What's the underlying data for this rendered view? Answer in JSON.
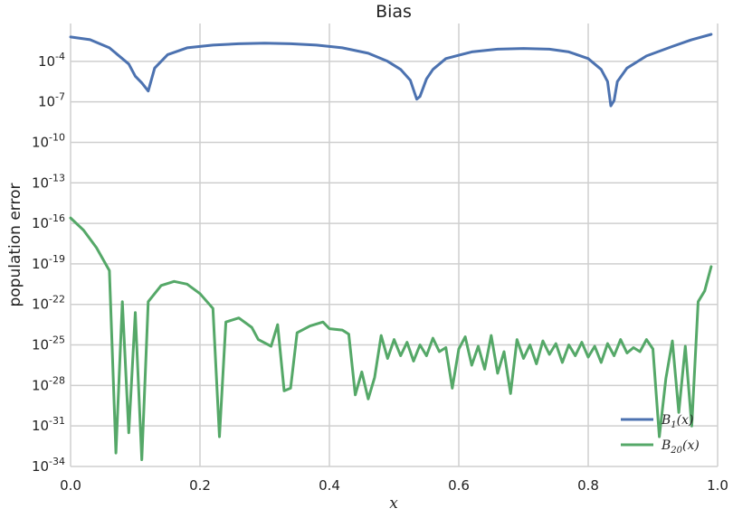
{
  "chart_data": {
    "type": "line",
    "title": "Bias",
    "xlabel": "x",
    "ylabel": "population error",
    "xscale": "linear",
    "yscale": "log",
    "xlim": [
      0.0,
      1.0
    ],
    "ylim_exponent": [
      -34,
      -1.2
    ],
    "grid": true,
    "legend_position": "lower-right",
    "x_ticks": [
      0.0,
      0.2,
      0.4,
      0.6,
      0.8,
      1.0
    ],
    "x_tick_labels": [
      "0.0",
      "0.2",
      "0.4",
      "0.6",
      "0.8",
      "1.0"
    ],
    "y_ticks_exponent": [
      -34,
      -31,
      -28,
      -25,
      -22,
      -19,
      -16,
      -13,
      -10,
      -7,
      -4
    ],
    "y_tick_base": "10",
    "y_tick_exponents": [
      "-34",
      "-31",
      "-28",
      "-25",
      "-22",
      "-19",
      "-16",
      "-13",
      "-10",
      "-7",
      "-4"
    ],
    "series": [
      {
        "name": "B_1(x)",
        "legend_main": "B",
        "legend_sub": "1",
        "legend_tail": "(x)",
        "color": "#4c72b0",
        "points_log10": [
          [
            0.0,
            -2.2
          ],
          [
            0.03,
            -2.4
          ],
          [
            0.06,
            -3.0
          ],
          [
            0.09,
            -4.2
          ],
          [
            0.1,
            -5.1
          ],
          [
            0.11,
            -5.6
          ],
          [
            0.12,
            -6.2
          ],
          [
            0.13,
            -4.5
          ],
          [
            0.15,
            -3.5
          ],
          [
            0.18,
            -3.0
          ],
          [
            0.22,
            -2.8
          ],
          [
            0.26,
            -2.7
          ],
          [
            0.3,
            -2.65
          ],
          [
            0.34,
            -2.7
          ],
          [
            0.38,
            -2.8
          ],
          [
            0.42,
            -3.0
          ],
          [
            0.46,
            -3.4
          ],
          [
            0.49,
            -4.0
          ],
          [
            0.51,
            -4.6
          ],
          [
            0.525,
            -5.4
          ],
          [
            0.535,
            -6.8
          ],
          [
            0.54,
            -6.6
          ],
          [
            0.55,
            -5.3
          ],
          [
            0.56,
            -4.6
          ],
          [
            0.58,
            -3.8
          ],
          [
            0.62,
            -3.3
          ],
          [
            0.66,
            -3.1
          ],
          [
            0.7,
            -3.05
          ],
          [
            0.74,
            -3.1
          ],
          [
            0.77,
            -3.3
          ],
          [
            0.8,
            -3.8
          ],
          [
            0.82,
            -4.6
          ],
          [
            0.83,
            -5.5
          ],
          [
            0.835,
            -7.3
          ],
          [
            0.84,
            -6.9
          ],
          [
            0.845,
            -5.5
          ],
          [
            0.86,
            -4.5
          ],
          [
            0.89,
            -3.6
          ],
          [
            0.93,
            -2.9
          ],
          [
            0.96,
            -2.4
          ],
          [
            0.99,
            -2.0
          ]
        ]
      },
      {
        "name": "B_20(x)",
        "legend_main": "B",
        "legend_sub": "20",
        "legend_tail": "(x)",
        "color": "#55a868",
        "points_log10": [
          [
            0.0,
            -15.6
          ],
          [
            0.02,
            -16.5
          ],
          [
            0.04,
            -17.8
          ],
          [
            0.06,
            -19.5
          ],
          [
            0.07,
            -33.0
          ],
          [
            0.08,
            -21.8
          ],
          [
            0.09,
            -31.5
          ],
          [
            0.1,
            -22.6
          ],
          [
            0.11,
            -33.5
          ],
          [
            0.12,
            -21.8
          ],
          [
            0.14,
            -20.6
          ],
          [
            0.16,
            -20.3
          ],
          [
            0.18,
            -20.5
          ],
          [
            0.2,
            -21.2
          ],
          [
            0.22,
            -22.3
          ],
          [
            0.23,
            -31.8
          ],
          [
            0.24,
            -23.3
          ],
          [
            0.26,
            -23.0
          ],
          [
            0.28,
            -23.7
          ],
          [
            0.29,
            -24.6
          ],
          [
            0.31,
            -25.1
          ],
          [
            0.32,
            -23.5
          ],
          [
            0.33,
            -28.4
          ],
          [
            0.34,
            -28.2
          ],
          [
            0.35,
            -24.1
          ],
          [
            0.37,
            -23.6
          ],
          [
            0.39,
            -23.3
          ],
          [
            0.4,
            -23.8
          ],
          [
            0.42,
            -23.9
          ],
          [
            0.43,
            -24.2
          ],
          [
            0.44,
            -28.7
          ],
          [
            0.45,
            -27.0
          ],
          [
            0.46,
            -29.0
          ],
          [
            0.47,
            -27.4
          ],
          [
            0.48,
            -24.3
          ],
          [
            0.49,
            -26.0
          ],
          [
            0.5,
            -24.6
          ],
          [
            0.51,
            -25.8
          ],
          [
            0.52,
            -24.8
          ],
          [
            0.53,
            -26.2
          ],
          [
            0.54,
            -25.0
          ],
          [
            0.55,
            -25.8
          ],
          [
            0.56,
            -24.5
          ],
          [
            0.57,
            -25.5
          ],
          [
            0.58,
            -25.2
          ],
          [
            0.59,
            -28.2
          ],
          [
            0.6,
            -25.3
          ],
          [
            0.61,
            -24.4
          ],
          [
            0.62,
            -26.5
          ],
          [
            0.63,
            -25.1
          ],
          [
            0.64,
            -26.8
          ],
          [
            0.65,
            -24.3
          ],
          [
            0.66,
            -27.1
          ],
          [
            0.67,
            -25.5
          ],
          [
            0.68,
            -28.6
          ],
          [
            0.69,
            -24.6
          ],
          [
            0.7,
            -26.0
          ],
          [
            0.71,
            -25.0
          ],
          [
            0.72,
            -26.4
          ],
          [
            0.73,
            -24.7
          ],
          [
            0.74,
            -25.7
          ],
          [
            0.75,
            -24.9
          ],
          [
            0.76,
            -26.3
          ],
          [
            0.77,
            -25.0
          ],
          [
            0.78,
            -25.8
          ],
          [
            0.79,
            -24.8
          ],
          [
            0.8,
            -25.9
          ],
          [
            0.81,
            -25.1
          ],
          [
            0.82,
            -26.3
          ],
          [
            0.83,
            -24.9
          ],
          [
            0.84,
            -25.8
          ],
          [
            0.85,
            -24.6
          ],
          [
            0.86,
            -25.6
          ],
          [
            0.87,
            -25.2
          ],
          [
            0.88,
            -25.5
          ],
          [
            0.89,
            -24.6
          ],
          [
            0.9,
            -25.3
          ],
          [
            0.91,
            -31.8
          ],
          [
            0.92,
            -27.5
          ],
          [
            0.93,
            -24.7
          ],
          [
            0.94,
            -30.0
          ],
          [
            0.95,
            -25.1
          ],
          [
            0.96,
            -31.0
          ],
          [
            0.97,
            -21.8
          ],
          [
            0.98,
            -21.0
          ],
          [
            0.99,
            -19.2
          ]
        ]
      }
    ]
  }
}
